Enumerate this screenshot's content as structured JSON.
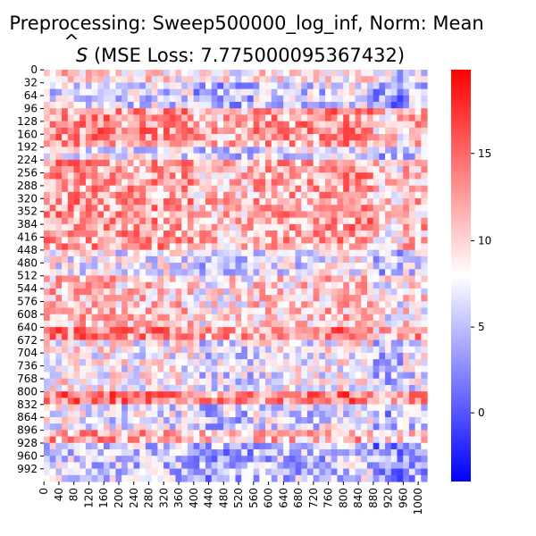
{
  "chart_data": {
    "type": "heatmap",
    "title": "Preprocessing: Sweep500000_log_inf, Norm: Mean",
    "subtitle_prefix": "S",
    "subtitle_rest": " (MSE Loss: 7.775000095367432)",
    "xlabel": "",
    "ylabel": "",
    "matrix_size": 1024,
    "y_ticks": [
      0,
      32,
      64,
      96,
      128,
      160,
      192,
      224,
      256,
      288,
      320,
      352,
      384,
      416,
      448,
      480,
      512,
      544,
      576,
      608,
      640,
      672,
      704,
      736,
      768,
      800,
      832,
      864,
      896,
      928,
      960,
      992
    ],
    "x_ticks": [
      0,
      40,
      80,
      120,
      160,
      200,
      240,
      280,
      320,
      360,
      400,
      440,
      480,
      520,
      560,
      600,
      640,
      680,
      720,
      760,
      800,
      840,
      880,
      920,
      960,
      1000
    ],
    "colorbar": {
      "cmap": "bwr",
      "vmin": -4.0,
      "vmax": 19.8,
      "center": 8.0,
      "ticks": [
        0,
        5,
        10,
        15
      ]
    },
    "pattern": {
      "grid_cells": 64,
      "row_bands": [
        {
          "range": [
            32,
            96
          ],
          "value": 3
        },
        {
          "range": [
            96,
            192
          ],
          "value": 14
        },
        {
          "range": [
            192,
            224
          ],
          "value": 5
        },
        {
          "range": [
            224,
            448
          ],
          "value": 13
        },
        {
          "range": [
            448,
            512
          ],
          "value": 5
        },
        {
          "range": [
            512,
            640
          ],
          "value": 10
        },
        {
          "range": [
            640,
            672
          ],
          "value": 15
        },
        {
          "range": [
            672,
            800
          ],
          "value": 6
        },
        {
          "range": [
            800,
            832
          ],
          "value": 16
        },
        {
          "range": [
            832,
            896
          ],
          "value": 4
        },
        {
          "range": [
            896,
            928
          ],
          "value": 12
        },
        {
          "range": [
            928,
            1024
          ],
          "value": 2
        }
      ],
      "col_bands": [
        {
          "range": [
            0,
            200
          ],
          "value": 12
        },
        {
          "range": [
            200,
            400
          ],
          "value": 11
        },
        {
          "range": [
            400,
            560
          ],
          "value": 7
        },
        {
          "range": [
            560,
            760
          ],
          "value": 10
        },
        {
          "range": [
            760,
            880
          ],
          "value": 12
        },
        {
          "range": [
            880,
            960
          ],
          "value": 4
        },
        {
          "range": [
            960,
            1024
          ],
          "value": 8
        }
      ]
    }
  }
}
